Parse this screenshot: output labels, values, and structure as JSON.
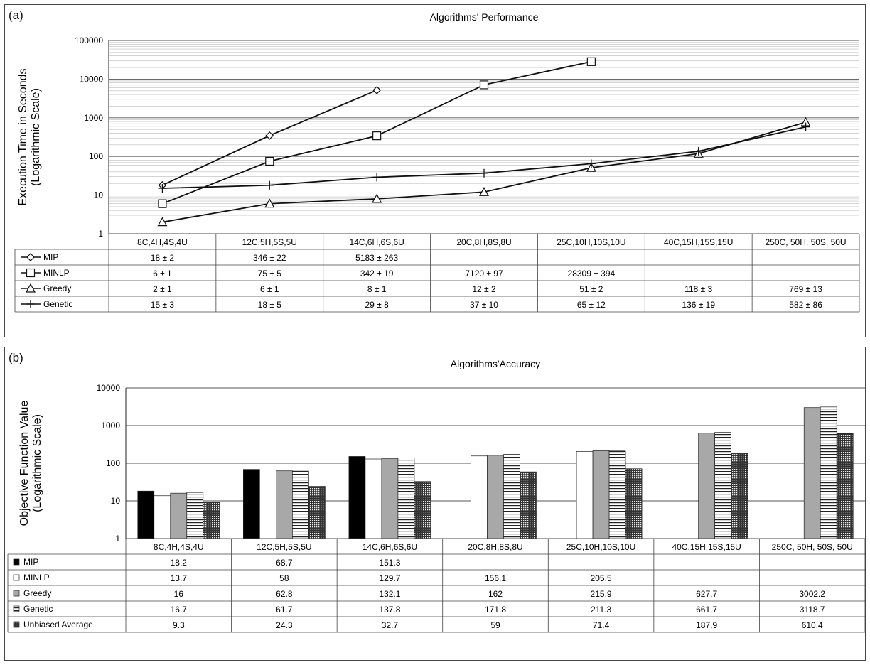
{
  "figure": {
    "panel_a_label": "(a)",
    "panel_b_label": "(b)"
  },
  "chart_data": [
    {
      "type": "line",
      "title": "Algorithms' Performance",
      "ylabel": [
        "Execution Time in Seconds",
        "(Logarithmic Scale)"
      ],
      "yscale": "log",
      "ylim": [
        1,
        100000
      ],
      "yticks": [
        "1",
        "10",
        "100",
        "1000",
        "10000",
        "100000"
      ],
      "grid": true,
      "categories": [
        "8C,4H,4S,4U",
        "12C,5H,5S,5U",
        "14C,6H,6S,6U",
        "20C,8H,8S,8U",
        "25C,10H,10S,10U",
        "40C,15H,15S,15U",
        "250C, 50H, 50S, 50U"
      ],
      "series": [
        {
          "name": "MIP",
          "marker": "diamond",
          "values": [
            18,
            346,
            5183,
            null,
            null,
            null,
            null
          ],
          "labels": [
            "18 ± 2",
            "346 ± 22",
            "5183 ± 263",
            "",
            "",
            "",
            ""
          ]
        },
        {
          "name": "MINLP",
          "marker": "square",
          "values": [
            6,
            75,
            342,
            7120,
            28309,
            null,
            null
          ],
          "labels": [
            "6 ± 1",
            "75 ± 5",
            "342 ± 19",
            "7120 ± 97",
            "28309 ± 394",
            "",
            ""
          ]
        },
        {
          "name": "Greedy",
          "marker": "triangle",
          "values": [
            2,
            6,
            8,
            12,
            51,
            118,
            769
          ],
          "labels": [
            "2 ± 1",
            "6 ± 1",
            "8 ± 1",
            "12 ± 2",
            "51 ± 2",
            "118 ± 3",
            "769 ± 13"
          ]
        },
        {
          "name": "Genetic",
          "marker": "plus",
          "values": [
            15,
            18,
            29,
            37,
            65,
            136,
            582
          ],
          "labels": [
            "15 ± 3",
            "18 ± 5",
            "29 ± 8",
            "37 ± 10",
            "65 ± 12",
            "136 ± 19",
            "582 ± 86"
          ]
        }
      ]
    },
    {
      "type": "bar",
      "title": "Algorithms'Accuracy",
      "ylabel": [
        "Objective Function Value",
        "(Logarithmic Scale)"
      ],
      "yscale": "log",
      "ylim": [
        1,
        10000
      ],
      "yticks": [
        "1",
        "10",
        "100",
        "1000",
        "10000"
      ],
      "grid": true,
      "categories": [
        "8C,4H,4S,4U",
        "12C,5H,5S,5U",
        "14C,6H,6S,6U",
        "20C,8H,8S,8U",
        "25C,10H,10S,10U",
        "40C,15H,15S,15U",
        "250C, 50H, 50S, 50U"
      ],
      "series": [
        {
          "name": "MIP",
          "fill": "black",
          "values": [
            18.2,
            68.7,
            151.3,
            null,
            null,
            null,
            null
          ],
          "labels": [
            "18.2",
            "68.7",
            "151.3",
            "",
            "",
            "",
            ""
          ]
        },
        {
          "name": "MINLP",
          "fill": "white",
          "values": [
            13.7,
            58,
            129.7,
            156.1,
            205.5,
            null,
            null
          ],
          "labels": [
            "13.7",
            "58",
            "129.7",
            "156.1",
            "205.5",
            "",
            ""
          ]
        },
        {
          "name": "Greedy",
          "fill": "gray",
          "values": [
            16,
            62.8,
            132.1,
            162,
            215.9,
            627.7,
            3002.2
          ],
          "labels": [
            "16",
            "62.8",
            "132.1",
            "162",
            "215.9",
            "627.7",
            "3002.2"
          ]
        },
        {
          "name": "Genetic",
          "fill": "stripes",
          "values": [
            16.7,
            61.7,
            137.8,
            171.8,
            211.3,
            661.7,
            3118.7
          ],
          "labels": [
            "16.7",
            "61.7",
            "137.8",
            "171.8",
            "211.3",
            "661.7",
            "3118.7"
          ]
        },
        {
          "name": "Unbiased Average",
          "fill": "dots",
          "values": [
            9.3,
            24.3,
            32.7,
            59,
            71.4,
            187.9,
            610.4
          ],
          "labels": [
            "9.3",
            "24.3",
            "32.7",
            "59",
            "71.4",
            "187.9",
            "610.4"
          ]
        }
      ]
    }
  ]
}
